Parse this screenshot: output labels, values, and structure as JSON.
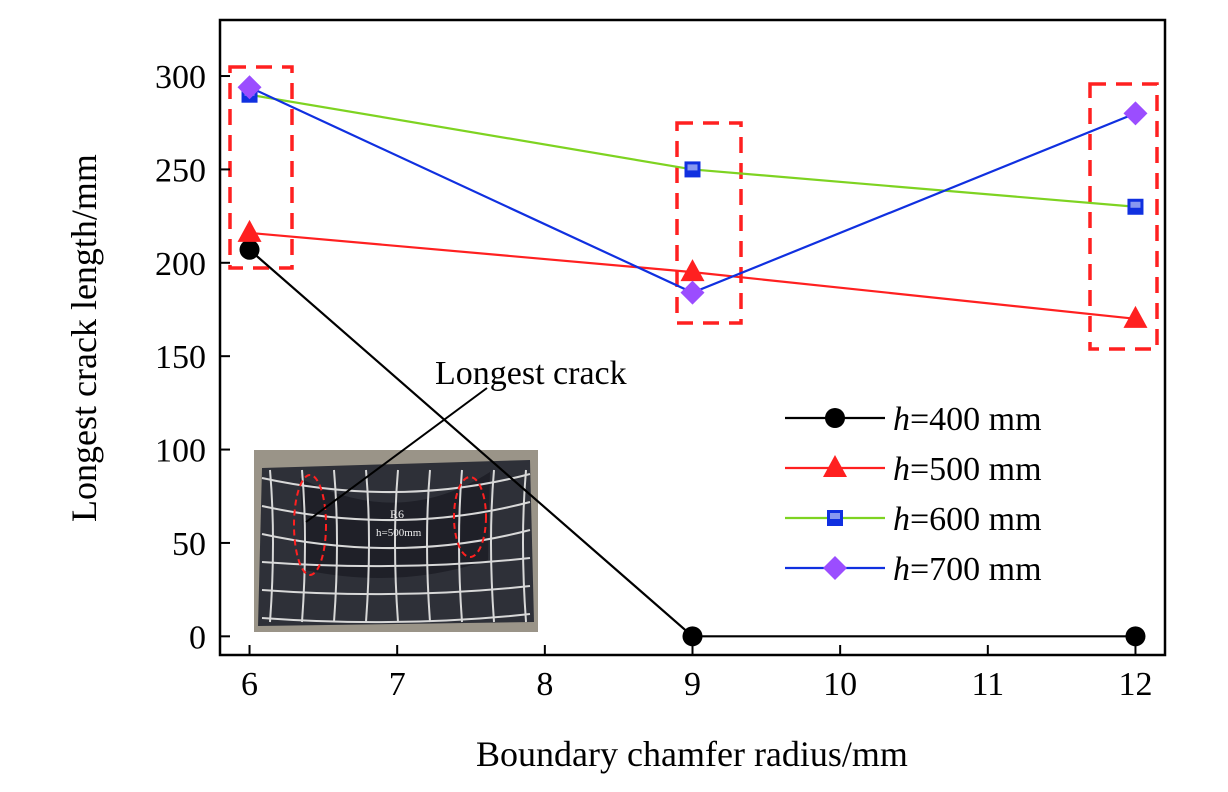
{
  "chart_data": {
    "type": "line",
    "title": "",
    "xlabel": "Boundary chamfer radius/mm",
    "ylabel": "Longest crack length/mm",
    "xlim": [
      5.8,
      12.2
    ],
    "ylim": [
      -10,
      330
    ],
    "xticks": [
      6,
      7,
      8,
      9,
      10,
      11,
      12
    ],
    "yticks": [
      0,
      50,
      100,
      150,
      200,
      250,
      300
    ],
    "x": [
      6,
      9,
      12
    ],
    "legend_position": "right-middle",
    "series": [
      {
        "name": "h=400 mm",
        "var": "h",
        "rest": "=400 mm",
        "color": "#000000",
        "marker": "circle",
        "values": [
          207,
          0,
          0
        ]
      },
      {
        "name": "h=500 mm",
        "var": "h",
        "rest": "=500 mm",
        "color": "#ff2020",
        "marker": "triangle",
        "values": [
          216,
          195,
          170
        ]
      },
      {
        "name": "h=600 mm",
        "var": "h",
        "rest": "=600 mm",
        "color": "#7ed321",
        "marker": "square",
        "marker_color": "#1030e0",
        "values": [
          290,
          250,
          230
        ]
      },
      {
        "name": "h=700 mm",
        "var": "h",
        "rest": "=700 mm",
        "color": "#1030e0",
        "marker": "diamond",
        "marker_color": "#9b4dff",
        "values": [
          294,
          184,
          280
        ]
      }
    ],
    "annotations": [
      {
        "text": "Longest crack"
      }
    ],
    "inset_photo": {
      "label_line1": "R6",
      "label_line2": "h=500mm"
    },
    "highlight_color": "#ff2020"
  }
}
